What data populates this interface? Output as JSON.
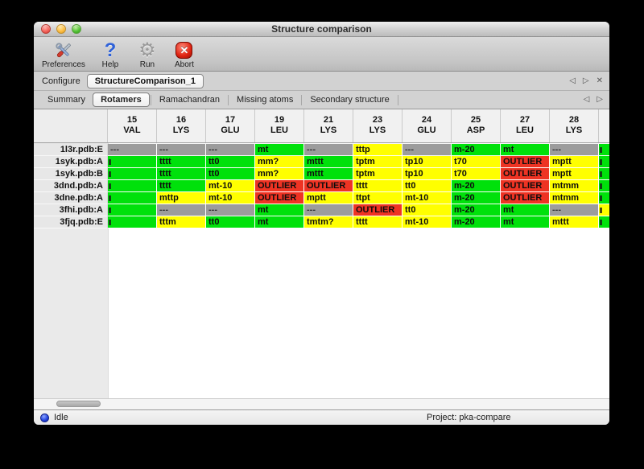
{
  "window": {
    "title": "Structure comparison"
  },
  "toolbar": {
    "items": [
      {
        "label": "Preferences",
        "icon": "tools-icon"
      },
      {
        "label": "Help",
        "icon": "question-icon",
        "glyph": "?"
      },
      {
        "label": "Run",
        "icon": "gear-icon",
        "glyph": "⚙"
      },
      {
        "label": "Abort",
        "icon": "stop-icon",
        "glyph": "✕"
      }
    ]
  },
  "configure": {
    "label": "Configure",
    "selected": "StructureComparison_1",
    "nav": {
      "prev": "◁",
      "next": "▷",
      "close": "✕"
    }
  },
  "tabs": {
    "items": [
      {
        "label": "Summary",
        "active": false
      },
      {
        "label": "Rotamers",
        "active": true
      },
      {
        "label": "Ramachandran",
        "active": false
      },
      {
        "label": "Missing atoms",
        "active": false
      },
      {
        "label": "Secondary structure",
        "active": false
      }
    ],
    "nav": {
      "prev": "◁",
      "next": "▷"
    }
  },
  "colors": {
    "green": "#00e10b",
    "yellow": "#ffff00",
    "red": "#ee3323",
    "gray": "#9c9c9c"
  },
  "table": {
    "columns": [
      {
        "num": "15",
        "res": "VAL"
      },
      {
        "num": "16",
        "res": "LYS"
      },
      {
        "num": "17",
        "res": "GLU"
      },
      {
        "num": "19",
        "res": "LEU"
      },
      {
        "num": "21",
        "res": "LYS"
      },
      {
        "num": "23",
        "res": "LYS"
      },
      {
        "num": "24",
        "res": "GLU"
      },
      {
        "num": "25",
        "res": "ASP"
      },
      {
        "num": "27",
        "res": "LEU"
      },
      {
        "num": "28",
        "res": "LYS"
      },
      {
        "num": "",
        "res": "",
        "partial": true
      }
    ],
    "rows": [
      {
        "label": "1l3r.pdb:E",
        "cells": [
          {
            "t": "---",
            "c": "gray"
          },
          {
            "t": "---",
            "c": "gray"
          },
          {
            "t": "---",
            "c": "gray"
          },
          {
            "t": "mt",
            "c": "green"
          },
          {
            "t": "---",
            "c": "gray"
          },
          {
            "t": "tttp",
            "c": "yellow"
          },
          {
            "t": "---",
            "c": "gray"
          },
          {
            "t": "m-20",
            "c": "green"
          },
          {
            "t": "mt",
            "c": "green"
          },
          {
            "t": "---",
            "c": "gray"
          },
          {
            "t": "",
            "c": "green",
            "clip": true
          }
        ]
      },
      {
        "label": "1syk.pdb:A",
        "cells": [
          {
            "t": "",
            "c": "green",
            "clip": true
          },
          {
            "t": "tttt",
            "c": "green"
          },
          {
            "t": "tt0",
            "c": "green"
          },
          {
            "t": "mm?",
            "c": "yellow"
          },
          {
            "t": "mttt",
            "c": "green"
          },
          {
            "t": "tptm",
            "c": "yellow"
          },
          {
            "t": "tp10",
            "c": "yellow"
          },
          {
            "t": "t70",
            "c": "yellow"
          },
          {
            "t": "OUTLIER",
            "c": "red"
          },
          {
            "t": "mptt",
            "c": "yellow"
          },
          {
            "t": "",
            "c": "green",
            "clip": true
          }
        ]
      },
      {
        "label": "1syk.pdb:B",
        "cells": [
          {
            "t": "",
            "c": "green",
            "clip": true
          },
          {
            "t": "tttt",
            "c": "green"
          },
          {
            "t": "tt0",
            "c": "green"
          },
          {
            "t": "mm?",
            "c": "yellow"
          },
          {
            "t": "mttt",
            "c": "green"
          },
          {
            "t": "tptm",
            "c": "yellow"
          },
          {
            "t": "tp10",
            "c": "yellow"
          },
          {
            "t": "t70",
            "c": "yellow"
          },
          {
            "t": "OUTLIER",
            "c": "red"
          },
          {
            "t": "mptt",
            "c": "yellow"
          },
          {
            "t": "",
            "c": "green",
            "clip": true
          }
        ]
      },
      {
        "label": "3dnd.pdb:A",
        "cells": [
          {
            "t": "",
            "c": "green",
            "clip": true
          },
          {
            "t": "tttt",
            "c": "green"
          },
          {
            "t": "mt-10",
            "c": "yellow"
          },
          {
            "t": "OUTLIER",
            "c": "red"
          },
          {
            "t": "OUTLIER",
            "c": "red"
          },
          {
            "t": "tttt",
            "c": "yellow"
          },
          {
            "t": "tt0",
            "c": "yellow"
          },
          {
            "t": "m-20",
            "c": "green"
          },
          {
            "t": "OUTLIER",
            "c": "red"
          },
          {
            "t": "mtmm",
            "c": "yellow"
          },
          {
            "t": "",
            "c": "green",
            "clip": true
          }
        ]
      },
      {
        "label": "3dne.pdb:A",
        "cells": [
          {
            "t": "",
            "c": "green",
            "clip": true
          },
          {
            "t": "mttp",
            "c": "yellow"
          },
          {
            "t": "mt-10",
            "c": "yellow"
          },
          {
            "t": "OUTLIER",
            "c": "red"
          },
          {
            "t": "mptt",
            "c": "yellow"
          },
          {
            "t": "ttpt",
            "c": "yellow"
          },
          {
            "t": "mt-10",
            "c": "yellow"
          },
          {
            "t": "m-20",
            "c": "green"
          },
          {
            "t": "OUTLIER",
            "c": "red"
          },
          {
            "t": "mtmm",
            "c": "yellow"
          },
          {
            "t": "",
            "c": "green",
            "clip": true
          }
        ]
      },
      {
        "label": "3fhi.pdb:A",
        "cells": [
          {
            "t": "",
            "c": "green",
            "clip": true
          },
          {
            "t": "---",
            "c": "gray"
          },
          {
            "t": "---",
            "c": "gray"
          },
          {
            "t": "mt",
            "c": "green"
          },
          {
            "t": "---",
            "c": "gray"
          },
          {
            "t": "OUTLIER",
            "c": "red"
          },
          {
            "t": "tt0",
            "c": "yellow"
          },
          {
            "t": "m-20",
            "c": "green"
          },
          {
            "t": "mt",
            "c": "green"
          },
          {
            "t": "---",
            "c": "gray"
          },
          {
            "t": "",
            "c": "yellow",
            "clip": true
          }
        ]
      },
      {
        "label": "3fjq.pdb:E",
        "cells": [
          {
            "t": "",
            "c": "green",
            "clip": true
          },
          {
            "t": "tttm",
            "c": "yellow"
          },
          {
            "t": "tt0",
            "c": "green"
          },
          {
            "t": "mt",
            "c": "green"
          },
          {
            "t": "tmtm?",
            "c": "yellow"
          },
          {
            "t": "tttt",
            "c": "yellow"
          },
          {
            "t": "mt-10",
            "c": "yellow"
          },
          {
            "t": "m-20",
            "c": "green"
          },
          {
            "t": "mt",
            "c": "green"
          },
          {
            "t": "mttt",
            "c": "yellow"
          },
          {
            "t": "",
            "c": "green",
            "clip": true
          }
        ]
      }
    ]
  },
  "statusbar": {
    "status": "Idle",
    "project": "Project: pka-compare"
  }
}
